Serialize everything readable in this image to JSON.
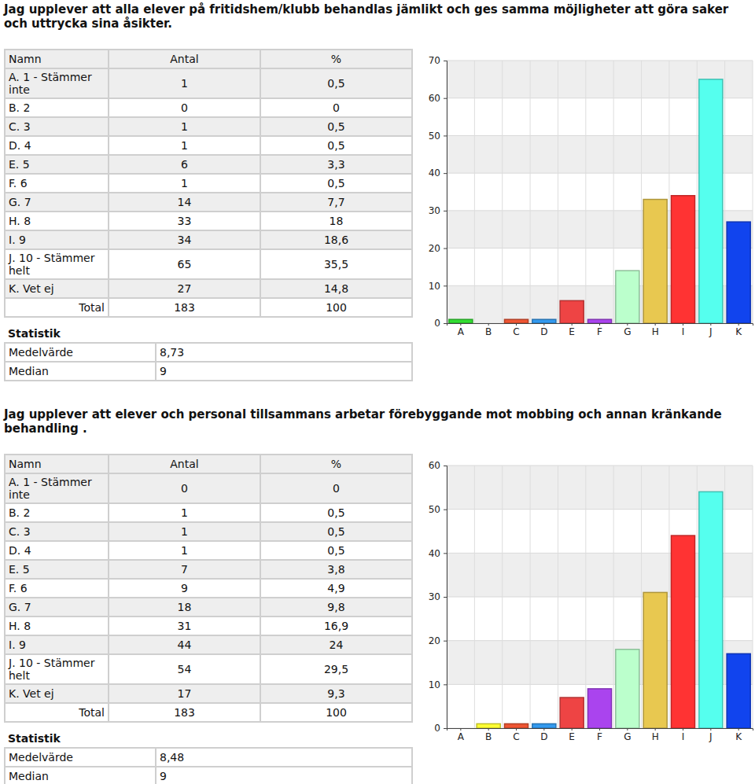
{
  "chart_data": [
    {
      "type": "bar",
      "title": "Jag upplever att alla elever på fritidshem/klubb behandlas jämlikt och ges samma möjligheter att göra saker och uttrycka sina åsikter.",
      "categories": [
        "A",
        "B",
        "C",
        "D",
        "E",
        "F",
        "G",
        "H",
        "I",
        "J",
        "K"
      ],
      "values": [
        1,
        0,
        1,
        1,
        6,
        1,
        14,
        33,
        34,
        65,
        27
      ],
      "colors": [
        "#33dd33",
        "#ffff33",
        "#ee5533",
        "#3399ee",
        "#ee4444",
        "#aa44ee",
        "#bbffcc",
        "#e8c850",
        "#ff3333",
        "#55ffee",
        "#1144ee"
      ],
      "ylim": [
        0,
        70
      ],
      "yticks": [
        0,
        10,
        20,
        30,
        40,
        50,
        60,
        70
      ],
      "grid": true
    },
    {
      "type": "bar",
      "title": "Jag upplever att elever och personal tillsammans arbetar förebyggande mot mobbing och annan kränkande behandling .",
      "categories": [
        "A",
        "B",
        "C",
        "D",
        "E",
        "F",
        "G",
        "H",
        "I",
        "J",
        "K"
      ],
      "values": [
        0,
        1,
        1,
        1,
        7,
        9,
        18,
        31,
        44,
        54,
        17
      ],
      "colors": [
        "#33dd33",
        "#ffff33",
        "#ee5533",
        "#3399ee",
        "#ee4444",
        "#aa44ee",
        "#bbffcc",
        "#e8c850",
        "#ff3333",
        "#55ffee",
        "#1144ee"
      ],
      "ylim": [
        0,
        60
      ],
      "yticks": [
        0,
        10,
        20,
        30,
        40,
        50,
        60
      ],
      "grid": true
    }
  ],
  "tables": [
    {
      "columns": [
        "Namn",
        "Antal",
        "%"
      ],
      "rows": [
        [
          "A. 1 - Stämmer inte",
          "1",
          "0,5"
        ],
        [
          "B. 2",
          "0",
          "0"
        ],
        [
          "C. 3",
          "1",
          "0,5"
        ],
        [
          "D. 4",
          "1",
          "0,5"
        ],
        [
          "E. 5",
          "6",
          "3,3"
        ],
        [
          "F. 6",
          "1",
          "0,5"
        ],
        [
          "G. 7",
          "14",
          "7,7"
        ],
        [
          "H. 8",
          "33",
          "18"
        ],
        [
          "I. 9",
          "34",
          "18,6"
        ],
        [
          "J. 10 - Stämmer helt",
          "65",
          "35,5"
        ],
        [
          "K. Vet ej",
          "27",
          "14,8"
        ]
      ],
      "total": [
        "Total",
        "183",
        "100"
      ],
      "statistics": {
        "title": "Statistik",
        "rows": [
          [
            "Medelvärde",
            "8,73"
          ],
          [
            "Median",
            "9"
          ]
        ]
      }
    },
    {
      "columns": [
        "Namn",
        "Antal",
        "%"
      ],
      "rows": [
        [
          "A. 1 - Stämmer inte",
          "0",
          "0"
        ],
        [
          "B. 2",
          "1",
          "0,5"
        ],
        [
          "C. 3",
          "1",
          "0,5"
        ],
        [
          "D. 4",
          "1",
          "0,5"
        ],
        [
          "E. 5",
          "7",
          "3,8"
        ],
        [
          "F. 6",
          "9",
          "4,9"
        ],
        [
          "G. 7",
          "18",
          "9,8"
        ],
        [
          "H. 8",
          "31",
          "16,9"
        ],
        [
          "I. 9",
          "44",
          "24"
        ],
        [
          "J. 10 - Stämmer helt",
          "54",
          "29,5"
        ],
        [
          "K. Vet ej",
          "17",
          "9,3"
        ]
      ],
      "total": [
        "Total",
        "183",
        "100"
      ],
      "statistics": {
        "title": "Statistik",
        "rows": [
          [
            "Medelvärde",
            "8,48"
          ],
          [
            "Median",
            "9"
          ]
        ]
      }
    }
  ]
}
